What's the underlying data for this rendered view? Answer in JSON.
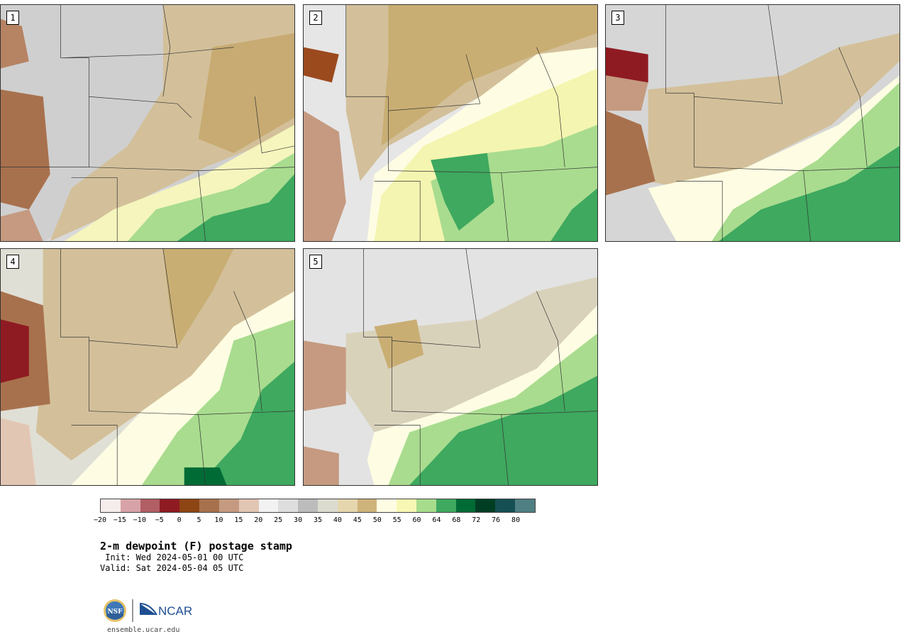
{
  "panels": [
    {
      "label": "1"
    },
    {
      "label": "2"
    },
    {
      "label": "3"
    },
    {
      "label": "4"
    },
    {
      "label": "5"
    }
  ],
  "colorbar": {
    "colors": [
      "#f5ecec",
      "#d8a3a8",
      "#b15e64",
      "#8f1b22",
      "#8e4514",
      "#a8714d",
      "#c59a80",
      "#e2c6b4",
      "#f2f2f2",
      "#dedede",
      "#bcbcbc",
      "#dcdbd0",
      "#e5d6ae",
      "#ceb47a",
      "#fefde3",
      "#f8f8b4",
      "#a7dc8c",
      "#3ea95f",
      "#006b35",
      "#003e24",
      "#154f53",
      "#4f7f82"
    ],
    "ticks": [
      "−20",
      "−15",
      "−10",
      "−5",
      "0",
      "5",
      "10",
      "15",
      "20",
      "25",
      "30",
      "35",
      "40",
      "45",
      "50",
      "55",
      "60",
      "64",
      "68",
      "72",
      "76",
      "80"
    ]
  },
  "title": "2-m dewpoint (F) postage stamp",
  "init": " Init: Wed 2024-05-01 00 UTC",
  "valid": "Valid: Sat 2024-05-04 05 UTC",
  "logos": {
    "nsf": "NSF",
    "ncar": "NCAR"
  },
  "site": "ensemble.ucar.edu"
}
